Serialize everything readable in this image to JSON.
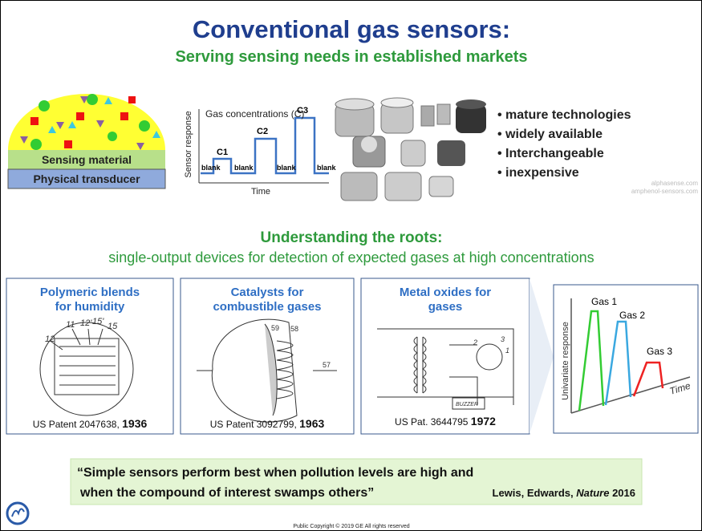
{
  "header": {
    "title": "Conventional gas sensors:",
    "subtitle": "Serving sensing needs in established markets"
  },
  "sensor_diagram": {
    "layers": [
      "Sensing material",
      "Physical transducer"
    ]
  },
  "response_chart": {
    "title": "Gas concentrations (C)",
    "ylabel": "Sensor response",
    "xlabel": "Time",
    "peaks": [
      "C1",
      "C2",
      "C3"
    ],
    "baseline_labels": [
      "blank",
      "blank",
      "blank",
      "blank"
    ]
  },
  "bullets": [
    "mature technologies",
    "widely available",
    "Interchangeable",
    "inexpensive"
  ],
  "sources": [
    "alphasense.com",
    "amphenol-sensors.com"
  ],
  "roots": {
    "heading": "Understanding the roots:",
    "subheading": "single-output devices for detection of expected gases at high concentrations"
  },
  "panels": [
    {
      "title": [
        "Polymeric blends",
        "for humidity"
      ],
      "caption": "US Patent 2047638, ",
      "year": "1936",
      "labels": [
        "11",
        "12'",
        "15'",
        "15",
        "12"
      ]
    },
    {
      "title": [
        "Catalysts for",
        "combustible gases"
      ],
      "caption": "US Patent 3092799, ",
      "year": "1963",
      "labels": [
        "59",
        "58",
        "57"
      ]
    },
    {
      "title": [
        "Metal oxides for",
        "gases"
      ],
      "caption": "US Pat. 3644795 ",
      "year": "1972",
      "labels": [
        "2",
        "3",
        "1",
        "BUZZER"
      ]
    }
  ],
  "univariate_chart": {
    "ylabel": "Univariate response",
    "xlabel": "Time",
    "gases": [
      "Gas 1",
      "Gas 2",
      "Gas 3"
    ]
  },
  "quote": {
    "lines": [
      "“Simple sensors perform best when pollution levels are high and",
      "when the compound of interest swamps others”"
    ],
    "authors": "Lewis, Edwards, ",
    "journal": "Nature",
    "year": " 2016"
  },
  "footer": "Public Copyright © 2019 GE All rights reserved"
}
